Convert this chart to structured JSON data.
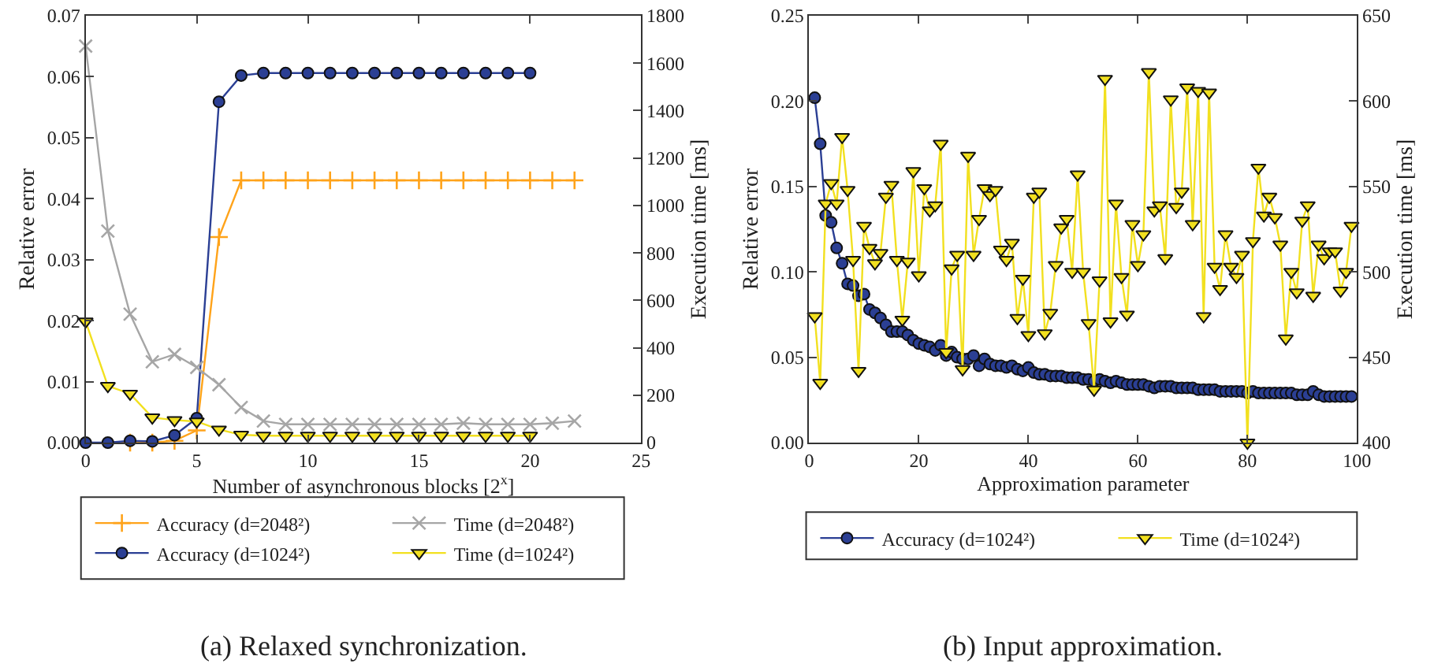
{
  "chart_data": [
    {
      "type": "line",
      "xlabel": "Number of asynchronous blocks [2$^{x}$]",
      "ylabel": "Relative error",
      "y2label": "Execution time [ms]",
      "xlim": [
        0,
        25
      ],
      "xticks": [
        0,
        5,
        10,
        15,
        20,
        25
      ],
      "ylim": [
        0,
        0.07
      ],
      "yticks": [
        {
          "value": 0,
          "label": "0.00"
        },
        {
          "value": 0.01,
          "label": "0.01"
        },
        {
          "value": 0.02,
          "label": "0.02"
        },
        {
          "value": 0.03,
          "label": "0.03"
        },
        {
          "value": 0.04,
          "label": "0.04"
        },
        {
          "value": 0.05,
          "label": "0.05"
        },
        {
          "value": 0.06,
          "label": "0.06"
        },
        {
          "value": 0.07,
          "label": "0.07"
        }
      ],
      "y2lim": [
        0,
        1800
      ],
      "y2ticks": [
        0,
        200,
        400,
        600,
        800,
        1000,
        1200,
        1400,
        1600,
        1800
      ],
      "legend": "bottom",
      "line_style": "solid",
      "series": [
        {
          "name": "Accuracy (d=2048²)",
          "color": "#ffa31a",
          "marker": "cross",
          "x": [
            2,
            3,
            4,
            5,
            6,
            7,
            8,
            9,
            10,
            11,
            12,
            13,
            14,
            15,
            16,
            17,
            18,
            19,
            20,
            21,
            22
          ],
          "values": [
            0,
            0,
            0.0003,
            0.002,
            0.0337,
            0.043,
            0.043,
            0.043,
            0.043,
            0.043,
            0.043,
            0.043,
            0.043,
            0.043,
            0.043,
            0.043,
            0.043,
            0.043,
            0.043,
            0.043,
            0.043
          ]
        },
        {
          "name": "Accuracy (d=1024²)",
          "color": "#2b3f94",
          "marker": "circle",
          "x": [
            0,
            1,
            2,
            3,
            4,
            5,
            6,
            7,
            8,
            9,
            10,
            11,
            12,
            13,
            14,
            15,
            16,
            17,
            18,
            19,
            20
          ],
          "values": [
            0,
            0,
            0.0003,
            0.0002,
            0.0012,
            0.004,
            0.0559,
            0.0602,
            0.0606,
            0.0606,
            0.0606,
            0.0606,
            0.0606,
            0.0606,
            0.0606,
            0.0606,
            0.0606,
            0.0606,
            0.0606,
            0.0606,
            0.0606
          ]
        },
        {
          "name": "Time (d=2048²)",
          "color": "#a6a6a6",
          "marker": "x",
          "axis": "y2",
          "x": [
            0,
            1,
            2,
            3,
            4,
            5,
            6,
            7,
            8,
            9,
            10,
            11,
            12,
            13,
            14,
            15,
            16,
            17,
            18,
            19,
            20,
            21,
            22
          ],
          "values": [
            1672,
            892,
            542,
            341,
            372,
            317,
            244,
            148,
            91,
            77,
            77,
            77,
            77,
            77,
            77,
            77,
            77,
            82,
            77,
            77,
            77,
            82,
            91
          ]
        },
        {
          "name": "Time (d=1024²)",
          "color": "#f2e01f",
          "marker": "triangle",
          "axis": "y2",
          "x": [
            0,
            1,
            2,
            3,
            4,
            5,
            6,
            7,
            8,
            9,
            10,
            11,
            12,
            13,
            14,
            15,
            16,
            17,
            18,
            19,
            20
          ],
          "values": [
            511,
            239,
            206,
            106,
            95,
            89,
            55,
            33,
            29,
            29,
            29,
            29,
            29,
            29,
            29,
            29,
            29,
            29,
            29,
            29,
            29
          ]
        }
      ],
      "annotations": [
        "(a) Relaxed synchronization."
      ]
    },
    {
      "type": "line",
      "xlabel": "Approximation parameter",
      "ylabel": "Relative error",
      "y2label": "Execution time [ms]",
      "xlim": [
        0,
        100
      ],
      "xticks": [
        0,
        20,
        40,
        60,
        80,
        100
      ],
      "ylim": [
        0,
        0.25
      ],
      "yticks": [
        {
          "value": 0,
          "label": "0.00"
        },
        {
          "value": 0.05,
          "label": "0.05"
        },
        {
          "value": 0.1,
          "label": "0.10"
        },
        {
          "value": 0.15,
          "label": "0.15"
        },
        {
          "value": 0.2,
          "label": "0.20"
        },
        {
          "value": 0.25,
          "label": "0.25"
        }
      ],
      "y2lim": [
        400,
        650
      ],
      "y2ticks": [
        400,
        450,
        500,
        550,
        600,
        650
      ],
      "legend": "bottom",
      "line_style": "solid",
      "x": [
        1,
        2,
        3,
        4,
        5,
        6,
        7,
        8,
        9,
        10,
        11,
        12,
        13,
        14,
        15,
        16,
        17,
        18,
        19,
        20,
        21,
        22,
        23,
        24,
        25,
        26,
        27,
        28,
        29,
        30,
        31,
        32,
        33,
        34,
        35,
        36,
        37,
        38,
        39,
        40,
        41,
        42,
        43,
        44,
        45,
        46,
        47,
        48,
        49,
        50,
        51,
        52,
        53,
        54,
        55,
        56,
        57,
        58,
        59,
        60,
        61,
        62,
        63,
        64,
        65,
        66,
        67,
        68,
        69,
        70,
        71,
        72,
        73,
        74,
        75,
        76,
        77,
        78,
        79,
        80,
        81,
        82,
        83,
        84,
        85,
        86,
        87,
        88,
        89,
        90,
        91,
        92,
        93,
        94,
        95,
        96,
        97,
        98,
        99
      ],
      "series": [
        {
          "name": "Accuracy (d=1024²)",
          "color": "#2b3f94",
          "marker": "circle",
          "values": [
            0.202,
            0.175,
            0.133,
            0.129,
            0.114,
            0.105,
            0.093,
            0.092,
            0.086,
            0.087,
            0.078,
            0.076,
            0.073,
            0.069,
            0.065,
            0.065,
            0.065,
            0.063,
            0.06,
            0.058,
            0.057,
            0.056,
            0.054,
            0.057,
            0.051,
            0.053,
            0.05,
            0.049,
            0.049,
            0.051,
            0.045,
            0.049,
            0.046,
            0.045,
            0.045,
            0.044,
            0.045,
            0.043,
            0.042,
            0.044,
            0.041,
            0.04,
            0.04,
            0.039,
            0.039,
            0.039,
            0.038,
            0.038,
            0.038,
            0.037,
            0.037,
            0.036,
            0.037,
            0.036,
            0.035,
            0.036,
            0.035,
            0.034,
            0.034,
            0.034,
            0.034,
            0.033,
            0.032,
            0.033,
            0.033,
            0.033,
            0.032,
            0.032,
            0.032,
            0.032,
            0.031,
            0.031,
            0.031,
            0.031,
            0.03,
            0.03,
            0.03,
            0.03,
            0.03,
            0.029,
            0.03,
            0.029,
            0.029,
            0.029,
            0.029,
            0.029,
            0.029,
            0.029,
            0.028,
            0.028,
            0.028,
            0.03,
            0.028,
            0.027,
            0.027,
            0.027,
            0.027,
            0.027,
            0.027
          ]
        },
        {
          "name": "Time (d=1024²)",
          "color": "#f2e01f",
          "marker": "triangle",
          "axis": "y2",
          "values": [
            474,
            435,
            540,
            552,
            540,
            579,
            548,
            507,
            442,
            527,
            514,
            505,
            511,
            544,
            551,
            507,
            472,
            506,
            559,
            498,
            549,
            536,
            539,
            575,
            453,
            502,
            510,
            443,
            568,
            510,
            531,
            549,
            545,
            548,
            513,
            507,
            517,
            473,
            496,
            463,
            544,
            547,
            464,
            476,
            504,
            526,
            531,
            500,
            557,
            500,
            470,
            431,
            495,
            613,
            471,
            540,
            497,
            475,
            528,
            504,
            522,
            617,
            536,
            539,
            508,
            601,
            538,
            547,
            608,
            528,
            606,
            474,
            605,
            503,
            490,
            522,
            503,
            497,
            510,
            400,
            518,
            561,
            533,
            544,
            532,
            516,
            461,
            500,
            488,
            530,
            539,
            486,
            516,
            508,
            512,
            512,
            489,
            500,
            527
          ]
        }
      ],
      "annotations": [
        "(b) Input approximation."
      ]
    }
  ]
}
